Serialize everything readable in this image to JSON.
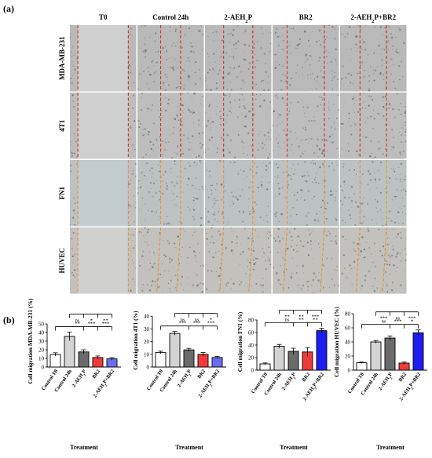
{
  "panel_a": {
    "label": "(a)",
    "columns": [
      "T0",
      "Control 24h",
      "2-AEH2P",
      "BR2",
      "2-AEH2P+BR2"
    ],
    "rows": [
      "MDA-MB-231",
      "4T1",
      "FN1",
      "HUVEC"
    ],
    "tile_colors": [
      "#b9b9b9",
      "#bdbdbd",
      "#bcc2c2",
      "#c2c1bd"
    ],
    "tile_dot_color": "#6f6f6f",
    "row_line_colors": [
      "#e0301e",
      "#e0301e",
      "#e8942a",
      "#e8942a"
    ]
  },
  "panel_b": {
    "label": "(b)",
    "xlabel": "Treatment",
    "charts": [
      {
        "ylabel": "Cell migration MDA-MB-231 (%)",
        "categories": [
          "Control T0",
          "Control 24h",
          "2-AEH2P",
          "BR2",
          "2-AEH2P+BR2"
        ],
        "values": [
          14.5,
          35.5,
          17.5,
          11,
          9.5
        ],
        "errors": [
          2,
          5,
          2.5,
          1.8,
          1.5
        ],
        "colors": [
          "#ffffff",
          "#d3d3d3",
          "#6b6b6b",
          "#ef3b3b",
          "#6a6cf0"
        ],
        "ylim": [
          0,
          60
        ],
        "yticks": [
          0,
          10,
          20,
          30,
          40,
          50
        ],
        "sig": [
          {
            "from": 1,
            "to": 2,
            "label": "ns"
          },
          {
            "from": 1,
            "to": 3,
            "label": "*"
          },
          {
            "from": 1,
            "to": 4,
            "label": "**"
          },
          {
            "from": 0,
            "to": 2,
            "label": "**"
          },
          {
            "from": 0,
            "to": 3,
            "label": "***"
          },
          {
            "from": 0,
            "to": 4,
            "label": "***"
          }
        ]
      },
      {
        "ylabel": "Cell migration 4T1 (%)",
        "categories": [
          "Control T0",
          "Control 24h",
          "2-AEH2P",
          "BR2",
          "2-AEH2P+BR2"
        ],
        "values": [
          11.5,
          26.5,
          13.5,
          10,
          7.5
        ],
        "errors": [
          1,
          1.5,
          1.2,
          1.5,
          0.8
        ],
        "colors": [
          "#ffffff",
          "#d3d3d3",
          "#6b6b6b",
          "#ef3b3b",
          "#6a6cf0"
        ],
        "ylim": [
          0,
          42
        ],
        "yticks": [
          0,
          10,
          20,
          30,
          40
        ],
        "sig": [
          {
            "from": 1,
            "to": 2,
            "label": "ns"
          },
          {
            "from": 1,
            "to": 3,
            "label": "ns"
          },
          {
            "from": 1,
            "to": 4,
            "label": "*"
          },
          {
            "from": 0,
            "to": 2,
            "label": "***"
          },
          {
            "from": 0,
            "to": 3,
            "label": "***"
          },
          {
            "from": 0,
            "to": 4,
            "label": "***"
          }
        ]
      },
      {
        "ylabel": "Cell migration FN1 (%)",
        "categories": [
          "Control T0",
          "Control 24h",
          "2-AEH2P",
          "BR2",
          "2-AEH2P+BR2"
        ],
        "values": [
          10,
          38,
          30,
          29,
          63
        ],
        "errors": [
          1.5,
          3,
          5,
          7,
          4
        ],
        "colors": [
          "#ffffff",
          "#d3d3d3",
          "#6b6b6b",
          "#ef3b3b",
          "#1d1df0"
        ],
        "ylim": [
          0,
          90
        ],
        "yticks": [
          0,
          20,
          40,
          60,
          80
        ],
        "sig": [
          {
            "from": 1,
            "to": 2,
            "label": "**"
          },
          {
            "from": 1,
            "to": 3,
            "label": "**"
          },
          {
            "from": 1,
            "to": 4,
            "label": "***"
          },
          {
            "from": 0,
            "to": 2,
            "label": "ns"
          },
          {
            "from": 0,
            "to": 3,
            "label": "**"
          },
          {
            "from": 0,
            "to": 4,
            "label": "**"
          }
        ]
      },
      {
        "ylabel": "Cell migration HUVEC (%)",
        "categories": [
          "Control T0",
          "Control 24h",
          "2-AEH2P",
          "BR2",
          "2-AEH2P+BR2"
        ],
        "values": [
          10.5,
          40,
          45.5,
          10,
          53
        ],
        "errors": [
          1,
          2,
          3,
          1.5,
          4
        ],
        "colors": [
          "#ffffff",
          "#d3d3d3",
          "#6b6b6b",
          "#ef3b3b",
          "#1d1df0"
        ],
        "ylim": [
          0,
          80
        ],
        "yticks": [
          0,
          20,
          40,
          60,
          80
        ],
        "sig": [
          {
            "from": 1,
            "to": 2,
            "label": "***"
          },
          {
            "from": 1,
            "to": 3,
            "label": "ns"
          },
          {
            "from": 1,
            "to": 4,
            "label": "***"
          },
          {
            "from": 0,
            "to": 2,
            "label": "ns"
          },
          {
            "from": 0,
            "to": 3,
            "label": "***"
          },
          {
            "from": 0,
            "to": 4,
            "label": "*"
          }
        ]
      }
    ]
  }
}
